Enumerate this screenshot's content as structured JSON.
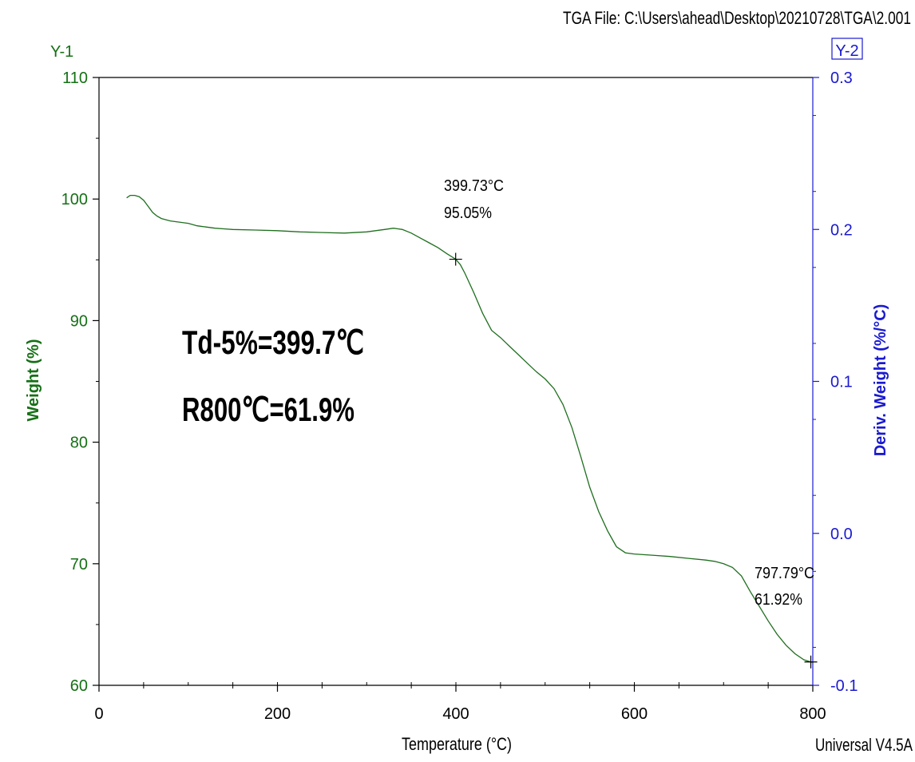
{
  "header": {
    "file_label": "TGA File: C:\\Users\\ahead\\Desktop\\20210728\\TGA\\2.001",
    "footer_label": "Universal V4.5A"
  },
  "axes": {
    "y1_tag": "Y-1",
    "y2_tag": "Y-2",
    "x_title": "Temperature (°C)",
    "y1_title": "Weight (%)",
    "y2_title": "Deriv. Weight (%/°C)"
  },
  "annotations": {
    "td": "Td-5%=399.7℃",
    "r800": "R800℃=61.9%",
    "point1_temp": "399.73°C",
    "point1_weight": "95.05%",
    "point2_temp": "797.79°C",
    "point2_weight": "61.92%"
  },
  "colors": {
    "y1": "#157015",
    "y2": "#1a1ad0",
    "curve": "#1f6e1f",
    "text": "#000000"
  },
  "chart_data": {
    "type": "line",
    "x_ticks": [
      "0",
      "200",
      "400",
      "600",
      "800"
    ],
    "y1_ticks": [
      "60",
      "70",
      "80",
      "90",
      "100",
      "110"
    ],
    "y2_ticks": [
      "-0.1",
      "0.0",
      "0.1",
      "0.2",
      "0.3"
    ],
    "xlim": [
      0,
      800
    ],
    "ylim": [
      60,
      110
    ],
    "y2lim": [
      -0.1,
      0.3
    ],
    "grid": false,
    "series": [
      {
        "axis": "y1",
        "x": [
          31,
          35,
          40,
          45,
          50,
          55,
          60,
          65,
          70,
          80,
          90,
          100,
          110,
          120,
          130,
          140,
          150,
          175,
          200,
          225,
          250,
          275,
          300,
          310,
          320,
          330,
          335,
          340,
          350,
          360,
          370,
          380,
          390,
          399.73,
          405,
          410,
          420,
          430,
          440,
          450,
          460,
          470,
          480,
          490,
          500,
          510,
          520,
          530,
          540,
          550,
          560,
          570,
          580,
          590,
          600,
          610,
          620,
          640,
          660,
          680,
          690,
          700,
          710,
          720,
          730,
          740,
          750,
          760,
          770,
          780,
          790,
          797.79,
          800
        ],
        "values": [
          100.1,
          100.3,
          100.3,
          100.2,
          99.9,
          99.4,
          98.9,
          98.6,
          98.4,
          98.2,
          98.1,
          98.0,
          97.8,
          97.7,
          97.6,
          97.55,
          97.5,
          97.45,
          97.4,
          97.3,
          97.25,
          97.2,
          97.3,
          97.4,
          97.5,
          97.6,
          97.55,
          97.5,
          97.2,
          96.8,
          96.4,
          96.0,
          95.5,
          95.05,
          94.6,
          93.9,
          92.3,
          90.6,
          89.2,
          88.6,
          87.9,
          87.2,
          86.5,
          85.8,
          85.2,
          84.4,
          83.1,
          81.2,
          78.8,
          76.3,
          74.3,
          72.7,
          71.4,
          70.9,
          70.8,
          70.75,
          70.7,
          70.6,
          70.45,
          70.3,
          70.2,
          70.0,
          69.7,
          69.0,
          67.7,
          66.5,
          65.3,
          64.2,
          63.3,
          62.6,
          62.1,
          61.92,
          61.9
        ]
      }
    ]
  }
}
